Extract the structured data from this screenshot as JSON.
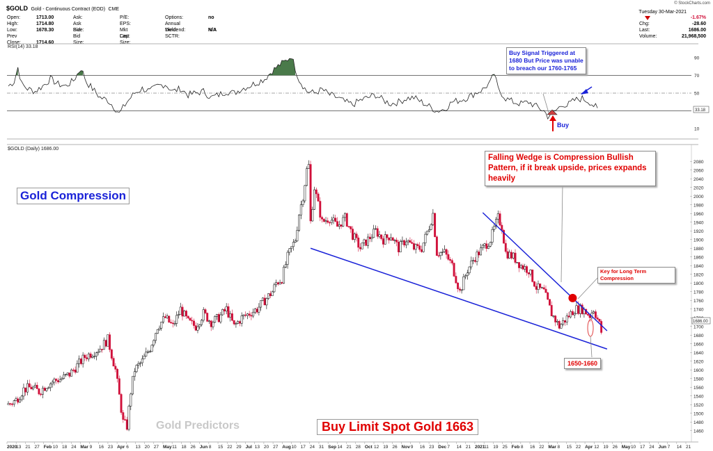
{
  "header": {
    "symbol": "$GOLD",
    "name": "Gold - Continuous Contract (EOD)",
    "exchange": "CME",
    "stamp": "© StockCharts.com",
    "cols": [
      [
        [
          "Open:",
          "1713.00"
        ],
        [
          "High:",
          "1714.80"
        ],
        [
          "Low:",
          "1678.30"
        ],
        [
          "Prev Close:",
          "1714.60"
        ]
      ],
      [
        [
          "Ask:",
          ""
        ],
        [
          "Ask Size:",
          ""
        ],
        [
          "Bid:",
          ""
        ],
        [
          "Bid Size:",
          ""
        ]
      ],
      [
        [
          "P/E:",
          ""
        ],
        [
          "EPS:",
          ""
        ],
        [
          "Mkt Cap:",
          ""
        ],
        [
          "Last Size:",
          ""
        ]
      ],
      [
        [
          "Options:",
          "no"
        ],
        [
          "Annual Dividend:",
          "N/A"
        ],
        [
          "Yield:",
          "N/A"
        ],
        [
          "SCTR:",
          ""
        ]
      ]
    ],
    "date": "Tuesday  30-Mar-2021",
    "right": [
      [
        "",
        "-1.67%"
      ],
      [
        "Chg:",
        "-28.60"
      ],
      [
        "Last:",
        "1686.00"
      ],
      [
        "Volume:",
        "21,968,500"
      ]
    ]
  },
  "rsi_panel": {
    "label": "RSI(14) 33.18",
    "value_tag": "33.18",
    "ticks": [
      "90",
      "70",
      "50",
      "30",
      "10"
    ],
    "callout": "Buy Signal Triggered at 1680 But Price was unable to breach our 1760-1765",
    "buy_label": "Buy"
  },
  "price_panel": {
    "label": "$GOLD (Daily) 1686.00",
    "value_tag": "1686.00",
    "price_ticks": [
      2080,
      2060,
      2040,
      2020,
      2000,
      1980,
      1960,
      1940,
      1920,
      1900,
      1880,
      1860,
      1840,
      1820,
      1800,
      1780,
      1760,
      1740,
      1720,
      1700,
      1680,
      1660,
      1640,
      1620,
      1600,
      1580,
      1560,
      1540,
      1520,
      1500,
      1480,
      1460
    ],
    "title_box": "Gold Compression",
    "callout_wedge": "Falling Wedge is Compression Bullish Pattern, if it break upside, prices expands heavily",
    "callout_key": "Key for Long Term Compression",
    "callout_range": "1650-1660",
    "watermark": "Gold Predictors",
    "buy_limit": "Buy Limit Spot Gold  1663"
  },
  "x_axis": {
    "labels": [
      {
        "t": "2020",
        "b": true
      },
      {
        "t": "13"
      },
      {
        "t": "21"
      },
      {
        "t": "27"
      },
      {
        "t": "Feb",
        "b": true
      },
      {
        "t": "10"
      },
      {
        "t": "18"
      },
      {
        "t": "24"
      },
      {
        "t": "Mar",
        "b": true
      },
      {
        "t": "9"
      },
      {
        "t": "16"
      },
      {
        "t": "23"
      },
      {
        "t": "Apr",
        "b": true
      },
      {
        "t": "6"
      },
      {
        "t": "13"
      },
      {
        "t": "20"
      },
      {
        "t": "27"
      },
      {
        "t": "May",
        "b": true
      },
      {
        "t": "11"
      },
      {
        "t": "18"
      },
      {
        "t": "26"
      },
      {
        "t": "Jun",
        "b": true
      },
      {
        "t": "8"
      },
      {
        "t": "15"
      },
      {
        "t": "22"
      },
      {
        "t": "29"
      },
      {
        "t": "Jul",
        "b": true
      },
      {
        "t": "13"
      },
      {
        "t": "20"
      },
      {
        "t": "27"
      },
      {
        "t": "Aug",
        "b": true
      },
      {
        "t": "10"
      },
      {
        "t": "17"
      },
      {
        "t": "24"
      },
      {
        "t": "31"
      },
      {
        "t": "Sep",
        "b": true
      },
      {
        "t": "14"
      },
      {
        "t": "21"
      },
      {
        "t": "28"
      },
      {
        "t": "Oct",
        "b": true
      },
      {
        "t": "12"
      },
      {
        "t": "19"
      },
      {
        "t": "26"
      },
      {
        "t": "Nov",
        "b": true
      },
      {
        "t": "9"
      },
      {
        "t": "16"
      },
      {
        "t": "23"
      },
      {
        "t": "Dec",
        "b": true
      },
      {
        "t": "7"
      },
      {
        "t": "14"
      },
      {
        "t": "21"
      },
      {
        "t": "2021",
        "b": true
      },
      {
        "t": "11"
      },
      {
        "t": "19"
      },
      {
        "t": "25"
      },
      {
        "t": "Feb",
        "b": true
      },
      {
        "t": "8"
      },
      {
        "t": "16"
      },
      {
        "t": "22"
      },
      {
        "t": "Mar",
        "b": true
      },
      {
        "t": "8"
      },
      {
        "t": "15"
      },
      {
        "t": "22"
      },
      {
        "t": "Apr",
        "b": true
      },
      {
        "t": "12"
      },
      {
        "t": "19"
      },
      {
        "t": "26"
      },
      {
        "t": "May",
        "b": true
      },
      {
        "t": "10"
      },
      {
        "t": "17"
      },
      {
        "t": "24"
      },
      {
        "t": "Jun",
        "b": true
      },
      {
        "t": "7"
      },
      {
        "t": "14"
      },
      {
        "t": "21"
      }
    ]
  },
  "chart_data": {
    "type": "line",
    "symbol": "$GOLD",
    "ylim": [
      1450,
      2090
    ],
    "rsi_lim": [
      0,
      100
    ],
    "rsi_levels": [
      70,
      50,
      30
    ],
    "last_close": 1686.0,
    "last_rsi": 33.18,
    "colors": {
      "up": "#000000",
      "down": "#d0103a",
      "trend": "#1a22d8",
      "rsi_fill": "#4a7a4a",
      "callout_blue": "#1a22d8",
      "callout_red": "#e00000"
    },
    "price_path": [
      [
        0,
        1520
      ],
      [
        4,
        1530
      ],
      [
        8,
        1555
      ],
      [
        12,
        1560
      ],
      [
        16,
        1550
      ],
      [
        20,
        1565
      ],
      [
        24,
        1575
      ],
      [
        28,
        1580
      ],
      [
        32,
        1590
      ],
      [
        36,
        1610
      ],
      [
        40,
        1630
      ],
      [
        44,
        1640
      ],
      [
        48,
        1650
      ],
      [
        52,
        1670
      ],
      [
        56,
        1600
      ],
      [
        60,
        1480
      ],
      [
        62,
        1470
      ],
      [
        64,
        1550
      ],
      [
        66,
        1600
      ],
      [
        70,
        1620
      ],
      [
        74,
        1650
      ],
      [
        78,
        1700
      ],
      [
        82,
        1720
      ],
      [
        86,
        1700
      ],
      [
        90,
        1740
      ],
      [
        94,
        1710
      ],
      [
        98,
        1700
      ],
      [
        102,
        1730
      ],
      [
        106,
        1710
      ],
      [
        110,
        1720
      ],
      [
        114,
        1740
      ],
      [
        118,
        1700
      ],
      [
        122,
        1720
      ],
      [
        126,
        1730
      ],
      [
        130,
        1740
      ],
      [
        134,
        1760
      ],
      [
        138,
        1780
      ],
      [
        140,
        1800
      ],
      [
        143,
        1810
      ],
      [
        146,
        1860
      ],
      [
        150,
        1900
      ],
      [
        152,
        1960
      ],
      [
        154,
        2000
      ],
      [
        156,
        2060
      ],
      [
        157,
        2070
      ],
      [
        158,
        1940
      ],
      [
        160,
        2020
      ],
      [
        162,
        1980
      ],
      [
        164,
        1940
      ],
      [
        168,
        1950
      ],
      [
        172,
        1930
      ],
      [
        176,
        1950
      ],
      [
        180,
        1910
      ],
      [
        184,
        1880
      ],
      [
        188,
        1900
      ],
      [
        192,
        1920
      ],
      [
        196,
        1900
      ],
      [
        200,
        1910
      ],
      [
        204,
        1880
      ],
      [
        208,
        1900
      ],
      [
        212,
        1880
      ],
      [
        216,
        1880
      ],
      [
        220,
        1930
      ],
      [
        222,
        1960
      ],
      [
        224,
        1870
      ],
      [
        228,
        1870
      ],
      [
        232,
        1840
      ],
      [
        236,
        1780
      ],
      [
        240,
        1830
      ],
      [
        244,
        1860
      ],
      [
        248,
        1880
      ],
      [
        252,
        1900
      ],
      [
        256,
        1950
      ],
      [
        258,
        1930
      ],
      [
        260,
        1870
      ],
      [
        264,
        1860
      ],
      [
        268,
        1840
      ],
      [
        272,
        1830
      ],
      [
        276,
        1790
      ],
      [
        280,
        1780
      ],
      [
        284,
        1730
      ],
      [
        288,
        1700
      ],
      [
        292,
        1720
      ],
      [
        296,
        1740
      ],
      [
        300,
        1740
      ],
      [
        304,
        1725
      ],
      [
        306,
        1740
      ],
      [
        309,
        1705
      ],
      [
        310,
        1686
      ]
    ],
    "rsi_path": [
      [
        0,
        58
      ],
      [
        3,
        63
      ],
      [
        5,
        79
      ],
      [
        7,
        60
      ],
      [
        10,
        55
      ],
      [
        14,
        52
      ],
      [
        18,
        58
      ],
      [
        22,
        66
      ],
      [
        26,
        60
      ],
      [
        30,
        58
      ],
      [
        34,
        64
      ],
      [
        38,
        78
      ],
      [
        41,
        62
      ],
      [
        44,
        55
      ],
      [
        48,
        45
      ],
      [
        52,
        42
      ],
      [
        55,
        35
      ],
      [
        58,
        27
      ],
      [
        62,
        40
      ],
      [
        66,
        50
      ],
      [
        70,
        55
      ],
      [
        74,
        52
      ],
      [
        78,
        58
      ],
      [
        82,
        60
      ],
      [
        86,
        52
      ],
      [
        90,
        55
      ],
      [
        94,
        48
      ],
      [
        98,
        50
      ],
      [
        102,
        52
      ],
      [
        106,
        45
      ],
      [
        110,
        48
      ],
      [
        114,
        52
      ],
      [
        118,
        50
      ],
      [
        122,
        55
      ],
      [
        126,
        58
      ],
      [
        130,
        62
      ],
      [
        134,
        66
      ],
      [
        138,
        75
      ],
      [
        142,
        82
      ],
      [
        145,
        86
      ],
      [
        148,
        92
      ],
      [
        150,
        78
      ],
      [
        152,
        65
      ],
      [
        156,
        52
      ],
      [
        160,
        50
      ],
      [
        164,
        54
      ],
      [
        168,
        48
      ],
      [
        172,
        45
      ],
      [
        176,
        40
      ],
      [
        180,
        37
      ],
      [
        184,
        42
      ],
      [
        188,
        45
      ],
      [
        192,
        48
      ],
      [
        196,
        42
      ],
      [
        200,
        38
      ],
      [
        204,
        40
      ],
      [
        208,
        44
      ],
      [
        212,
        45
      ],
      [
        216,
        40
      ],
      [
        220,
        35
      ],
      [
        224,
        30
      ],
      [
        228,
        32
      ],
      [
        232,
        40
      ],
      [
        236,
        42
      ],
      [
        240,
        45
      ],
      [
        244,
        50
      ],
      [
        248,
        54
      ],
      [
        252,
        62
      ],
      [
        254,
        72
      ],
      [
        256,
        55
      ],
      [
        260,
        44
      ],
      [
        264,
        40
      ],
      [
        268,
        38
      ],
      [
        272,
        40
      ],
      [
        276,
        35
      ],
      [
        280,
        30
      ],
      [
        282,
        24
      ],
      [
        286,
        30
      ],
      [
        290,
        38
      ],
      [
        292,
        36
      ],
      [
        296,
        42
      ],
      [
        300,
        44
      ],
      [
        304,
        40
      ],
      [
        306,
        36
      ],
      [
        308,
        33
      ]
    ],
    "trendlines": [
      {
        "name": "wedge-upper",
        "from": [
          248,
          1962
        ],
        "to": [
          313,
          1690
        ]
      },
      {
        "name": "wedge-lower",
        "from": [
          158,
          1880
        ],
        "to": [
          313,
          1648
        ]
      }
    ],
    "x_start_index": 0,
    "x_end_index": 356
  }
}
